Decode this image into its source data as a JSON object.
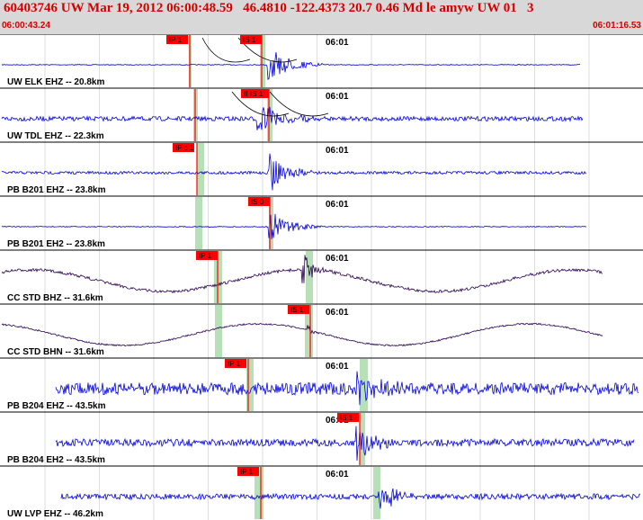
{
  "header": {
    "title": "60403746 UW Mar 19, 2012 06:00:48.59   46.4810 -122.4373 20.7 0.46 Md le amyw UW 01   3",
    "start_time": "06:00:43.24",
    "end_time": "06:01:16.53"
  },
  "time_tick_label": "06:01",
  "colors": {
    "header_bg": "#d8d8d8",
    "header_text": "#d40000",
    "trace_blue": "#0000dd",
    "trace_purple": "#2a0050",
    "pick_red": "#ff0000",
    "window_green": "#b8e0b8",
    "grid": "#c8c8c8"
  },
  "channels": [
    {
      "label": "UW ELK EHZ -- 20.8km",
      "color": "blue",
      "picks": [
        "IP 1",
        "IS 1"
      ],
      "noise": 0.05,
      "burst": 1.0
    },
    {
      "label": "UW TDL EHZ -- 22.3km",
      "color": "blue",
      "picks": [
        "IP d 1",
        "IS 1"
      ],
      "noise": 0.28,
      "burst": 1.0
    },
    {
      "label": "PB B201 EHZ -- 23.8km",
      "color": "blue",
      "picks": [
        "IP c 1"
      ],
      "noise": 0.18,
      "burst": 1.0
    },
    {
      "label": "PB B201 EH2 -- 23.8km",
      "color": "blue",
      "picks": [
        "IS 0"
      ],
      "noise": 0.06,
      "burst": 0.9
    },
    {
      "label": "CC STD BHZ -- 31.6km",
      "color": "purple",
      "picks": [
        "IP 1"
      ],
      "noise": 0.18,
      "burst": 1.0
    },
    {
      "label": "CC STD BHN -- 31.6km",
      "color": "purple",
      "picks": [
        "IS 1"
      ],
      "noise": 0.1,
      "burst": 0.3
    },
    {
      "label": "PB B204 EHZ -- 43.5km",
      "color": "blue",
      "picks": [
        "IP 1"
      ],
      "noise": 0.75,
      "burst": 1.0
    },
    {
      "label": "PB B204 EH2 -- 43.5km",
      "color": "blue",
      "picks": [
        "IS 1"
      ],
      "noise": 0.45,
      "burst": 1.0
    },
    {
      "label": "UW LVP EHZ -- 46.2km",
      "color": "blue",
      "picks": [
        "IP 1"
      ],
      "noise": 0.35,
      "burst": 1.0
    }
  ]
}
